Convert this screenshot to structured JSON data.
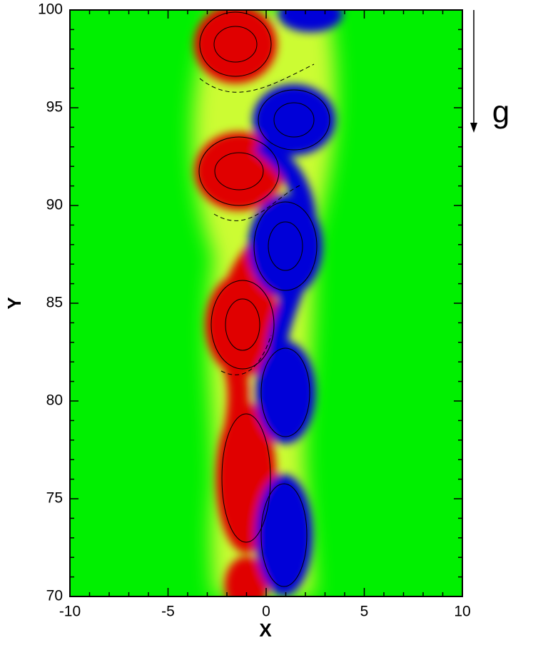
{
  "chart_data": {
    "type": "contour",
    "xlabel": "X",
    "ylabel": "Y",
    "annotation": "g",
    "xlim": [
      -10,
      10
    ],
    "ylim": [
      70,
      100
    ],
    "xticks": [
      -10,
      -5,
      0,
      5,
      10
    ],
    "yticks": [
      70,
      75,
      80,
      85,
      90,
      95,
      100
    ]
  }
}
